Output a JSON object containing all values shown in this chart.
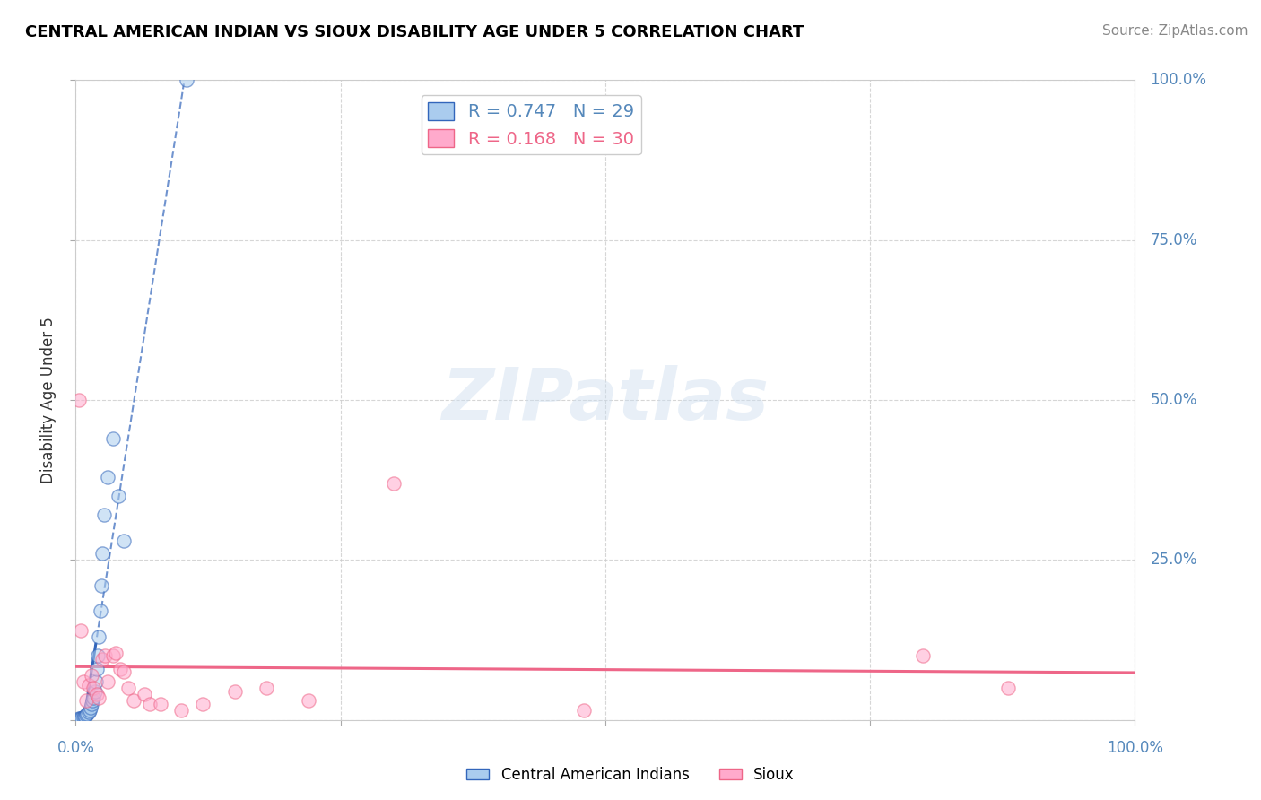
{
  "title": "CENTRAL AMERICAN INDIAN VS SIOUX DISABILITY AGE UNDER 5 CORRELATION CHART",
  "source": "Source: ZipAtlas.com",
  "ylabel": "Disability Age Under 5",
  "legend_label1": "Central American Indians",
  "legend_label2": "Sioux",
  "r1": 0.747,
  "n1": 29,
  "r2": 0.168,
  "n2": 30,
  "tick_color": "#5588bb",
  "watermark_text": "ZIPatlas",
  "background_color": "#ffffff",
  "grid_color": "#cccccc",
  "xlim": [
    0,
    100
  ],
  "ylim": [
    0,
    100
  ],
  "central_american_x": [
    0.3,
    0.4,
    0.5,
    0.6,
    0.7,
    0.8,
    0.9,
    1.0,
    1.1,
    1.2,
    1.3,
    1.4,
    1.5,
    1.6,
    1.7,
    1.8,
    1.9,
    2.0,
    2.1,
    2.2,
    2.3,
    2.4,
    2.5,
    2.7,
    3.0,
    3.5,
    4.0,
    4.5,
    10.5
  ],
  "central_american_y": [
    0.2,
    0.2,
    0.3,
    0.3,
    0.4,
    0.5,
    0.6,
    0.8,
    1.0,
    1.2,
    1.5,
    2.0,
    2.5,
    3.0,
    3.5,
    4.5,
    6.0,
    8.0,
    10.0,
    13.0,
    17.0,
    21.0,
    26.0,
    32.0,
    38.0,
    44.0,
    35.0,
    28.0,
    100.0
  ],
  "sioux_x": [
    0.3,
    0.5,
    0.7,
    1.0,
    1.2,
    1.5,
    1.7,
    2.0,
    2.2,
    2.5,
    2.8,
    3.0,
    3.5,
    3.8,
    4.2,
    4.5,
    5.0,
    5.5,
    6.5,
    7.0,
    8.0,
    10.0,
    12.0,
    15.0,
    18.0,
    22.0,
    30.0,
    48.0,
    80.0,
    88.0
  ],
  "sioux_y": [
    50.0,
    14.0,
    6.0,
    3.0,
    5.5,
    7.0,
    5.0,
    4.0,
    3.5,
    9.5,
    10.0,
    6.0,
    10.0,
    10.5,
    8.0,
    7.5,
    5.0,
    3.0,
    4.0,
    2.5,
    2.5,
    1.5,
    2.5,
    4.5,
    5.0,
    3.0,
    37.0,
    1.5,
    10.0,
    5.0
  ],
  "dot_size": 120,
  "dot_alpha": 0.55,
  "blue_dot_color": "#aaccee",
  "pink_dot_color": "#ffaacc",
  "blue_line_color": "#3366bb",
  "pink_line_color": "#ee6688",
  "legend_fontsize": 14,
  "title_fontsize": 13,
  "source_fontsize": 11
}
